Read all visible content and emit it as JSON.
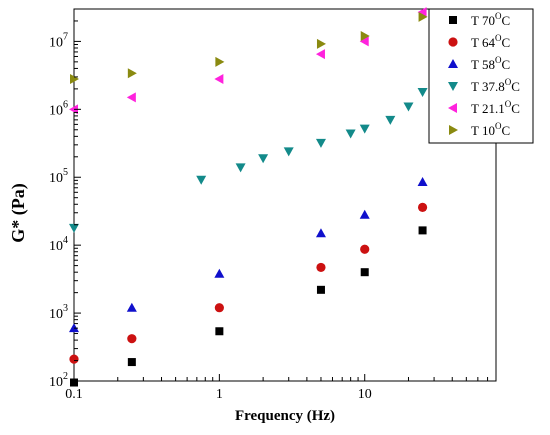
{
  "chart_data": {
    "type": "scatter",
    "xlabel": "Frequency (Hz)",
    "ylabel": "G* (Pa)",
    "x_scale": "log",
    "y_scale": "log",
    "xlim": [
      0.1,
      80
    ],
    "ylim": [
      100,
      30000000
    ],
    "x_ticks": [
      0.1,
      1,
      10
    ],
    "x_tick_labels": [
      "0.1",
      "1",
      "10"
    ],
    "y_ticks": [
      100,
      1000,
      10000,
      100000,
      1000000,
      10000000
    ],
    "y_tick_labels": [
      {
        "base": "10",
        "exp": "2"
      },
      {
        "base": "10",
        "exp": "3"
      },
      {
        "base": "10",
        "exp": "4"
      },
      {
        "base": "10",
        "exp": "5"
      },
      {
        "base": "10",
        "exp": "6"
      },
      {
        "base": "10",
        "exp": "7"
      }
    ],
    "legend_position": "top-right",
    "grid": false,
    "series": [
      {
        "label": {
          "prefix": "T 70",
          "sup": "O",
          "suffix": "C"
        },
        "marker": "square",
        "color": "#000000",
        "x": [
          0.1,
          0.25,
          1,
          5,
          10,
          25
        ],
        "y": [
          95,
          190,
          540,
          2200,
          4000,
          16500
        ]
      },
      {
        "label": {
          "prefix": "T 64",
          "sup": "O",
          "suffix": "C"
        },
        "marker": "circle",
        "color": "#cc1111",
        "x": [
          0.1,
          0.25,
          1,
          5,
          10,
          25
        ],
        "y": [
          210,
          420,
          1200,
          4700,
          8700,
          36000
        ]
      },
      {
        "label": {
          "prefix": "T 58",
          "sup": "O",
          "suffix": "C"
        },
        "marker": "triangle-up",
        "color": "#1010cc",
        "x": [
          0.1,
          0.25,
          1,
          5,
          10,
          25
        ],
        "y": [
          600,
          1200,
          3800,
          15000,
          28000,
          85000
        ]
      },
      {
        "label": {
          "prefix": "T 37.8",
          "sup": "O",
          "suffix": "C"
        },
        "marker": "triangle-down",
        "color": "#138a8a",
        "x": [
          0.1,
          0.75,
          1.4,
          2,
          3,
          5,
          8,
          10,
          15,
          20,
          25
        ],
        "y": [
          18000,
          92000,
          140000,
          190000,
          240000,
          320000,
          440000,
          520000,
          700000,
          1100000,
          1800000
        ]
      },
      {
        "label": {
          "prefix": "T 21.1",
          "sup": "O",
          "suffix": "C"
        },
        "marker": "triangle-left",
        "color": "#ff22dd",
        "x": [
          0.1,
          0.25,
          1,
          5,
          10,
          25
        ],
        "y": [
          1000000,
          1500000,
          2800000,
          6500000,
          10000000,
          27000000
        ]
      },
      {
        "label": {
          "prefix": "T 10",
          "sup": "O",
          "suffix": "C"
        },
        "marker": "triangle-right",
        "color": "#8a8a10",
        "x": [
          0.1,
          0.25,
          1,
          5,
          10,
          25
        ],
        "y": [
          2800000,
          3400000,
          5000000,
          9200000,
          12000000,
          23000000
        ]
      }
    ]
  }
}
